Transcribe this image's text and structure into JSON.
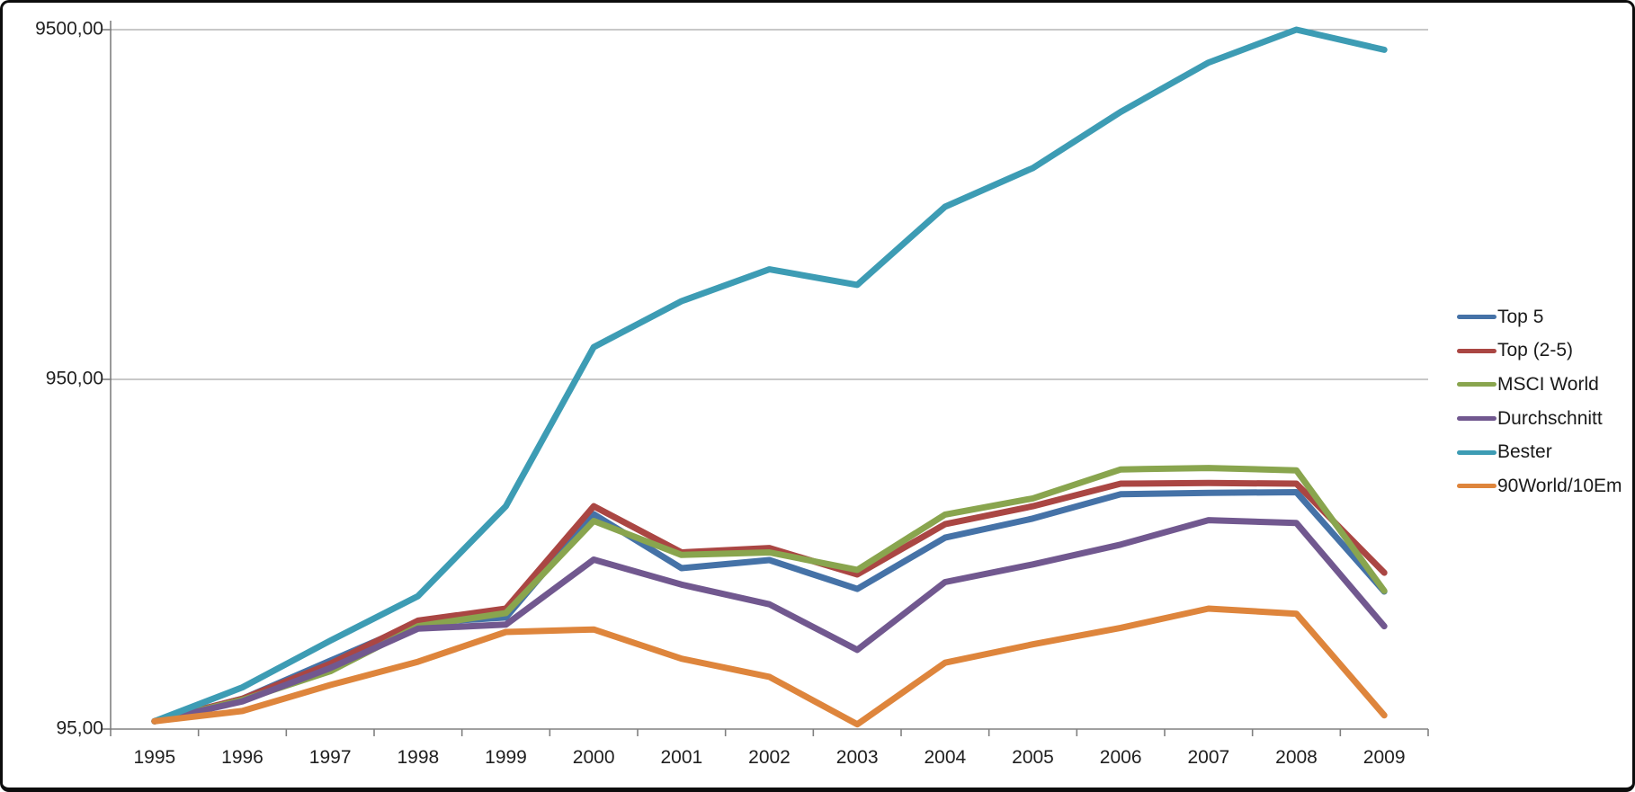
{
  "chart_data": {
    "type": "line",
    "title": "",
    "xlabel": "",
    "ylabel": "",
    "categories": [
      "1995",
      "1996",
      "1997",
      "1998",
      "1999",
      "2000",
      "2001",
      "2002",
      "2003",
      "2004",
      "2005",
      "2006",
      "2007",
      "2008",
      "2009"
    ],
    "series": [
      {
        "name": "Top 5",
        "color": "#4572A7",
        "values": [
          100,
          116,
          149,
          191,
          198,
          391,
          274,
          289,
          239,
          335,
          380,
          446,
          450,
          452,
          235
        ]
      },
      {
        "name": "Top (2-5)",
        "color": "#AA4643",
        "values": [
          100,
          116,
          146,
          194,
          210,
          412,
          304,
          313,
          263,
          366,
          412,
          478,
          480,
          478,
          266
        ]
      },
      {
        "name": "MSCI World",
        "color": "#89A54E",
        "values": [
          100,
          115,
          139,
          187,
          204,
          374,
          299,
          304,
          271,
          390,
          434,
          525,
          530,
          522,
          236
        ]
      },
      {
        "name": "Durchschnitt",
        "color": "#71588F",
        "values": [
          100,
          114,
          142,
          184,
          189,
          290,
          246,
          216,
          160,
          250,
          281,
          320,
          376,
          369,
          187
        ]
      },
      {
        "name": "Bester",
        "color": "#3D9CB4",
        "values": [
          100,
          125,
          170,
          228,
          412,
          1175,
          1590,
          1960,
          1770,
          2960,
          3820,
          5530,
          7650,
          9500,
          8320
        ]
      },
      {
        "name": "90World/10Em",
        "color": "#DE853C",
        "values": [
          100,
          107,
          127,
          148,
          180,
          183,
          151,
          134,
          98,
          147,
          166,
          185,
          210,
          203,
          104
        ]
      }
    ],
    "y_axis": {
      "scale": "log",
      "min": 95,
      "max": 9500,
      "tick_values": [
        9500,
        950,
        95
      ],
      "tick_labels": [
        "9500,00",
        "950,00",
        "95,00"
      ]
    },
    "grid": true,
    "legend_position": "right",
    "colors": {
      "gridline": "#A6A6A6",
      "axis": "#808080",
      "text": "#1f1f1f"
    }
  }
}
